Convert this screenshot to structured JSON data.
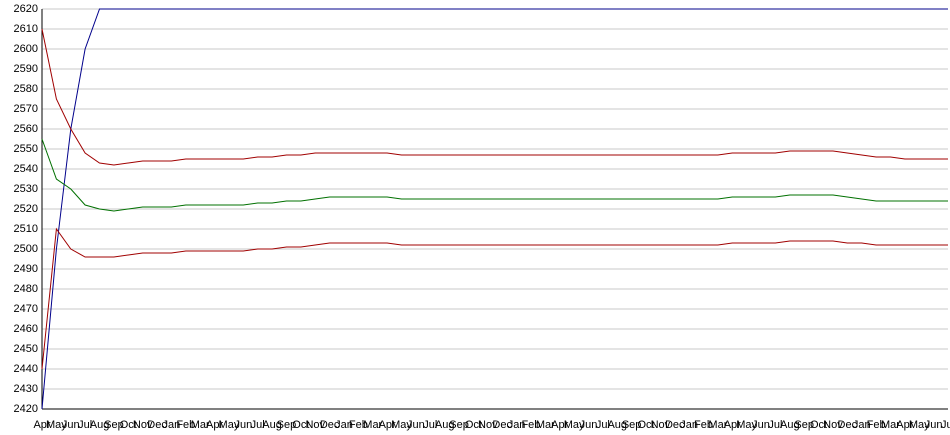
{
  "chart_data": {
    "type": "line",
    "categories": [
      "Apr",
      "May",
      "Jun",
      "Jul",
      "Aug",
      "Sep",
      "Oct",
      "Nov",
      "Dec",
      "Jan",
      "Feb",
      "Mar",
      "Apr",
      "May",
      "Jun",
      "Jul",
      "Aug",
      "Sep",
      "Oct",
      "Nov",
      "Dec",
      "Jan",
      "Feb",
      "Mar",
      "Apr",
      "May",
      "Jun",
      "Jul",
      "Aug",
      "Sep",
      "Oct",
      "Nov",
      "Dec",
      "Jan",
      "Feb",
      "Mar",
      "Apr",
      "May",
      "Jun",
      "Jul",
      "Aug",
      "Sep",
      "Oct",
      "Nov",
      "Dec",
      "Jan",
      "Feb",
      "Mar",
      "Apr",
      "May",
      "Jun",
      "Jul",
      "Aug",
      "Sep",
      "Oct",
      "Nov",
      "Dec",
      "Jan",
      "Feb",
      "Mar",
      "Apr",
      "May",
      "Jun",
      "Jul"
    ],
    "series": [
      {
        "color": "#00008b",
        "values": [
          2420,
          2500,
          2560,
          2600,
          2620,
          2620,
          2620,
          2620,
          2620,
          2620,
          2620,
          2620,
          2620,
          2620,
          2620,
          2620,
          2620,
          2620,
          2620,
          2620,
          2620,
          2620,
          2620,
          2620,
          2620,
          2620,
          2620,
          2620,
          2620,
          2620,
          2620,
          2620,
          2620,
          2620,
          2620,
          2620,
          2620,
          2620,
          2620,
          2620,
          2620,
          2620,
          2620,
          2620,
          2620,
          2620,
          2620,
          2620,
          2620,
          2620,
          2620,
          2620,
          2620,
          2620,
          2620,
          2620,
          2620,
          2620,
          2620,
          2620,
          2620,
          2620,
          2620,
          2620
        ]
      },
      {
        "color": "#a00000",
        "values": [
          2610,
          2575,
          2560,
          2548,
          2543,
          2542,
          2543,
          2544,
          2544,
          2544,
          2545,
          2545,
          2545,
          2545,
          2545,
          2546,
          2546,
          2547,
          2547,
          2548,
          2548,
          2548,
          2548,
          2548,
          2548,
          2547,
          2547,
          2547,
          2547,
          2547,
          2547,
          2547,
          2547,
          2547,
          2547,
          2547,
          2547,
          2547,
          2547,
          2547,
          2547,
          2547,
          2547,
          2547,
          2547,
          2547,
          2547,
          2547,
          2548,
          2548,
          2548,
          2548,
          2549,
          2549,
          2549,
          2549,
          2548,
          2547,
          2546,
          2546,
          2545,
          2545,
          2545,
          2545
        ]
      },
      {
        "color": "#007000",
        "values": [
          2555,
          2535,
          2530,
          2522,
          2520,
          2519,
          2520,
          2521,
          2521,
          2521,
          2522,
          2522,
          2522,
          2522,
          2522,
          2523,
          2523,
          2524,
          2524,
          2525,
          2526,
          2526,
          2526,
          2526,
          2526,
          2525,
          2525,
          2525,
          2525,
          2525,
          2525,
          2525,
          2525,
          2525,
          2525,
          2525,
          2525,
          2525,
          2525,
          2525,
          2525,
          2525,
          2525,
          2525,
          2525,
          2525,
          2525,
          2525,
          2526,
          2526,
          2526,
          2526,
          2527,
          2527,
          2527,
          2527,
          2526,
          2525,
          2524,
          2524,
          2524,
          2524,
          2524,
          2524
        ]
      },
      {
        "color": "#a00000",
        "values": [
          2440,
          2510,
          2500,
          2496,
          2496,
          2496,
          2497,
          2498,
          2498,
          2498,
          2499,
          2499,
          2499,
          2499,
          2499,
          2500,
          2500,
          2501,
          2501,
          2502,
          2503,
          2503,
          2503,
          2503,
          2503,
          2502,
          2502,
          2502,
          2502,
          2502,
          2502,
          2502,
          2502,
          2502,
          2502,
          2502,
          2502,
          2502,
          2502,
          2502,
          2502,
          2502,
          2502,
          2502,
          2502,
          2502,
          2502,
          2502,
          2503,
          2503,
          2503,
          2503,
          2504,
          2504,
          2504,
          2504,
          2503,
          2503,
          2502,
          2502,
          2502,
          2502,
          2502,
          2502
        ]
      }
    ],
    "ylim": [
      2420,
      2620
    ],
    "yticks": [
      2420,
      2430,
      2440,
      2450,
      2460,
      2470,
      2480,
      2490,
      2500,
      2510,
      2520,
      2530,
      2540,
      2550,
      2560,
      2570,
      2580,
      2590,
      2600,
      2610,
      2620
    ],
    "grid": true
  }
}
